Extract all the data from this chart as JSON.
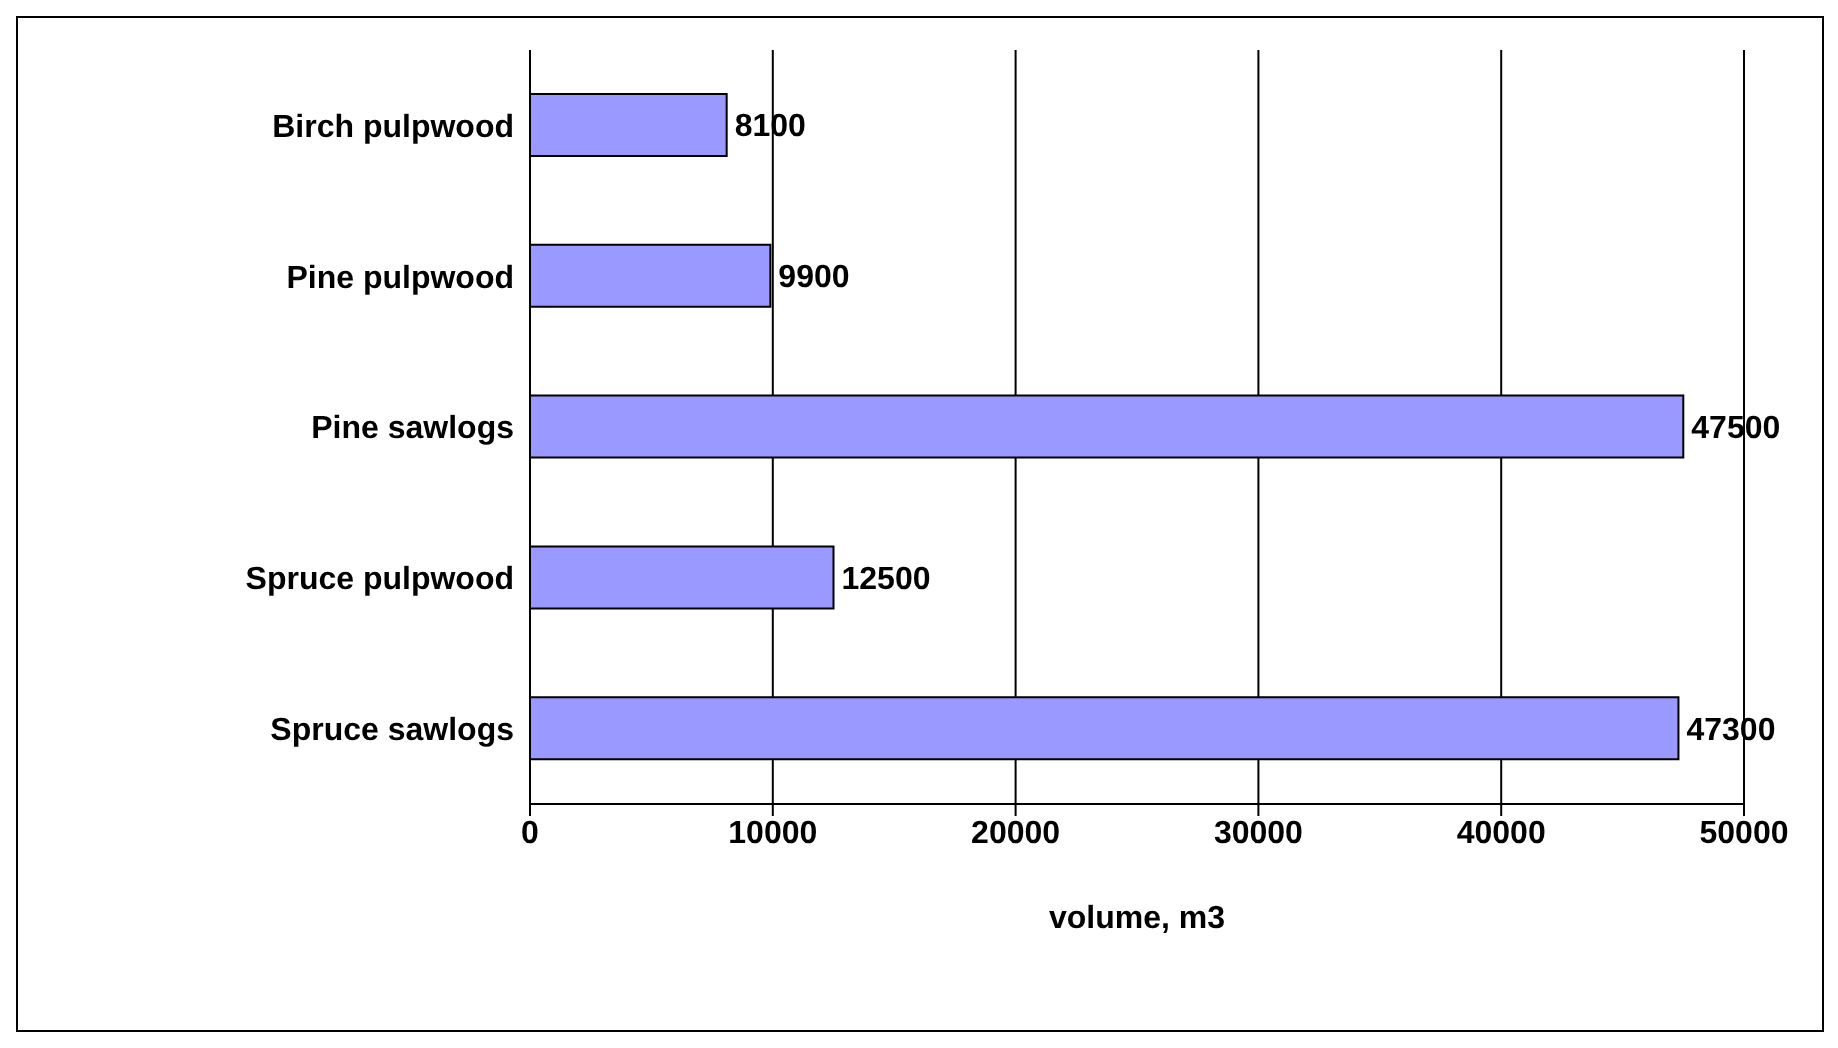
{
  "chart_data": {
    "type": "bar",
    "orientation": "horizontal",
    "categories": [
      "Birch pulpwood",
      "Pine pulpwood",
      "Pine sawlogs",
      "Spruce pulpwood",
      "Spruce sawlogs"
    ],
    "values": [
      8100,
      9900,
      47500,
      12500,
      47300
    ],
    "color": "#9999ff",
    "xlabel": "volume, m3",
    "xlim": [
      0,
      50000
    ],
    "xticks": [
      0,
      10000,
      20000,
      30000,
      40000,
      50000
    ],
    "grid": "x",
    "data_labels": true
  }
}
